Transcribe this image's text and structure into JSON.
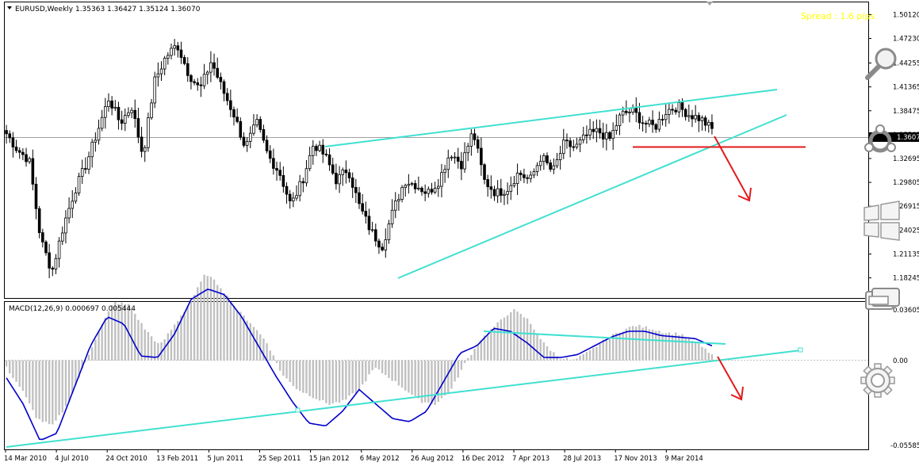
{
  "main": {
    "symbol_line": "EURUSD,Weekly  1.35363 1.36427 1.35124 1.36070",
    "spread": "Spread : 1.6 pips",
    "price_ticks": [
      "1.50120",
      "1.47230",
      "1.44255",
      "1.41365",
      "1.38475",
      "1.35585",
      "1.32695",
      "1.29805",
      "1.26915",
      "1.24025",
      "1.21135",
      "1.18245"
    ],
    "current_price": "1.36070"
  },
  "macd": {
    "label": "MACD(12,26,9) 0.000697 0.005444",
    "ticks": [
      "0.03605",
      "0.00",
      "-0.05585"
    ]
  },
  "time_axis": [
    "14 Mar 2010",
    "4 Jul 2010",
    "24 Oct 2010",
    "13 Feb 2011",
    "5 Jun 2011",
    "25 Sep 2011",
    "15 Jan 2012",
    "6 May 2012",
    "26 Aug 2012",
    "16 Dec 2012",
    "7 Apr 2013",
    "28 Jul 2013",
    "17 Nov 2013",
    "9 Mar 2014"
  ],
  "colors": {
    "bull": "#000000",
    "bear": "#000000",
    "trendline": "#40e0d0",
    "support": "#ff0000",
    "arrow": "#e31a1c",
    "signal": "#0000cd",
    "histogram": "#c0c0c0",
    "spread_text": "#ffff00"
  },
  "tools": [
    "search-icon",
    "crosshair-icon",
    "windows-icon",
    "folder-icon",
    "gear-icon"
  ],
  "chart_data": {
    "type": "candlestick",
    "close_anchors": [
      1.357,
      1.337,
      1.325,
      1.23,
      1.19,
      1.245,
      1.288,
      1.32,
      1.36,
      1.4,
      1.37,
      1.39,
      1.33,
      1.42,
      1.45,
      1.465,
      1.43,
      1.41,
      1.445,
      1.41,
      1.38,
      1.34,
      1.37,
      1.33,
      1.31,
      1.27,
      1.3,
      1.345,
      1.33,
      1.3,
      1.315,
      1.27,
      1.24,
      1.22,
      1.265,
      1.3,
      1.295,
      1.285,
      1.3,
      1.335,
      1.32,
      1.36,
      1.3,
      1.285,
      1.29,
      1.31,
      1.3,
      1.33,
      1.31,
      1.345,
      1.34,
      1.355,
      1.36,
      1.35,
      1.38,
      1.385,
      1.37,
      1.365,
      1.385,
      1.39,
      1.38,
      1.375,
      1.362
    ],
    "macd_hist_anchors": [
      -0.005,
      -0.02,
      -0.04,
      -0.045,
      -0.03,
      -0.005,
      0.02,
      0.04,
      0.038,
      0.022,
      0.01,
      0.025,
      0.04,
      0.06,
      0.05,
      0.035,
      0.025,
      0.012,
      -0.01,
      -0.02,
      -0.025,
      -0.03,
      -0.028,
      -0.02,
      -0.005,
      -0.012,
      -0.02,
      -0.028,
      -0.03,
      -0.02,
      0.0,
      0.015,
      0.025,
      0.035,
      0.028,
      0.012,
      0.002,
      0.0,
      0.006,
      0.014,
      0.02,
      0.024,
      0.022,
      0.019,
      0.018,
      0.012,
      0.004
    ],
    "macd_signal_anchors": [
      -0.012,
      -0.03,
      -0.055,
      -0.05,
      -0.02,
      0.01,
      0.03,
      0.025,
      0.003,
      0.002,
      0.018,
      0.042,
      0.049,
      0.045,
      0.03,
      0.01,
      -0.01,
      -0.028,
      -0.043,
      -0.045,
      -0.035,
      -0.02,
      -0.03,
      -0.04,
      -0.042,
      -0.035,
      -0.015,
      0.005,
      0.01,
      0.022,
      0.02,
      0.012,
      0.002,
      0.002,
      0.004,
      0.01,
      0.016,
      0.02,
      0.02,
      0.017,
      0.016,
      0.015,
      0.01
    ],
    "ylim": [
      1.16,
      1.515
    ],
    "macd_ylim": [
      -0.0605,
      0.0385
    ]
  }
}
